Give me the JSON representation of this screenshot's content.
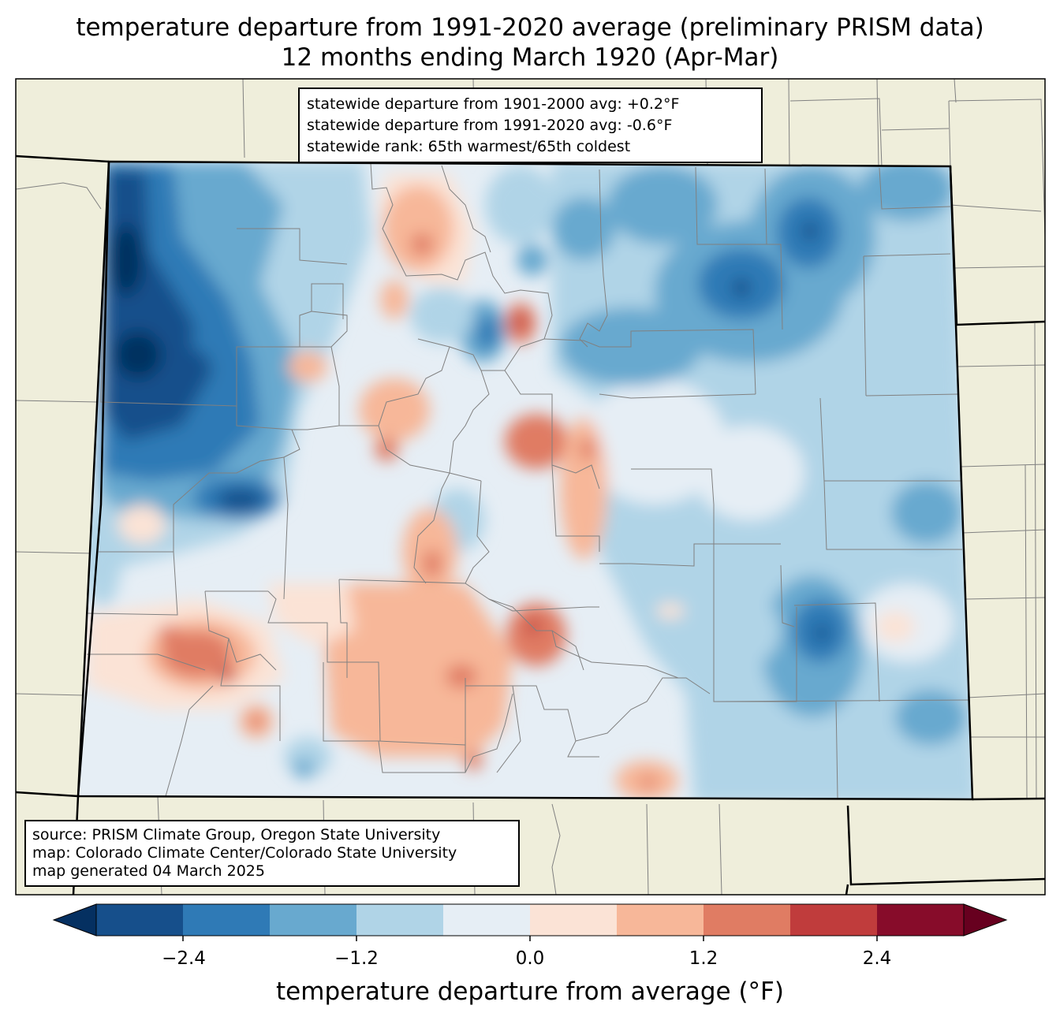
{
  "title": {
    "line1": "temperature departure from 1991-2020 average (preliminary PRISM data)",
    "line2": "12 months ending March 1920 (Apr-Mar)"
  },
  "stats": {
    "line1": "statewide departure from 1901-2000 avg: +0.2°F",
    "line2": "statewide departure from 1991-2020 avg: -0.6°F",
    "line3": "statewide rank: 65th warmest/65th coldest"
  },
  "source": {
    "line1": "source: PRISM Climate Group, Oregon State University",
    "line2": "map: Colorado Climate Center/Colorado State University",
    "line3": "map generated 04 March 2025"
  },
  "colorbar": {
    "label": "temperature departure from average (°F)",
    "ticks": [
      "−2.4",
      "−1.2",
      "0.0",
      "1.2",
      "2.4"
    ],
    "min": -3.0,
    "max": 3.0,
    "step": 0.6,
    "colors": [
      "#053061",
      "#164f8b",
      "#2f7ab6",
      "#68a9cf",
      "#b0d4e7",
      "#e6eef5",
      "#fbe3d6",
      "#f7b799",
      "#e07c63",
      "#c03c3c",
      "#870c2a",
      "#67001f"
    ]
  },
  "colors": {
    "land": "#efeedb",
    "state_border": "#000000",
    "county_border": "#808080"
  }
}
